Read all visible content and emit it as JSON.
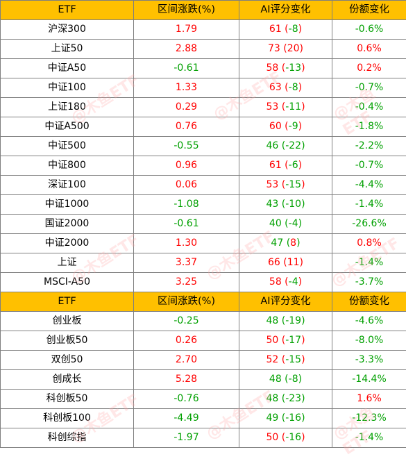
{
  "header": [
    "ETF",
    "区间涨跌(%)",
    "AI评分变化",
    "份额变化"
  ],
  "sections": [
    {
      "rows": [
        {
          "name": "沪深300",
          "change": "1.79",
          "change_color": "red",
          "score": "61",
          "score_color": "red",
          "delta": "-8",
          "delta_color": "green",
          "share": "-0.6%",
          "share_color": "green"
        },
        {
          "name": "上证50",
          "change": "2.88",
          "change_color": "red",
          "score": "73",
          "score_color": "red",
          "delta": "20",
          "delta_color": "red",
          "share": "0.6%",
          "share_color": "red"
        },
        {
          "name": "中证A50",
          "change": "-0.61",
          "change_color": "green",
          "score": "58",
          "score_color": "red",
          "delta": "-13",
          "delta_color": "green",
          "share": "0.2%",
          "share_color": "red"
        },
        {
          "name": "中证100",
          "change": "1.33",
          "change_color": "red",
          "score": "63",
          "score_color": "red",
          "delta": "-8",
          "delta_color": "green",
          "share": "-0.7%",
          "share_color": "green"
        },
        {
          "name": "上证180",
          "change": "0.29",
          "change_color": "red",
          "score": "53",
          "score_color": "red",
          "delta": "-11",
          "delta_color": "green",
          "share": "-0.4%",
          "share_color": "green"
        },
        {
          "name": "中证A500",
          "change": "0.76",
          "change_color": "red",
          "score": "60",
          "score_color": "red",
          "delta": "-9",
          "delta_color": "green",
          "share": "-1.8%",
          "share_color": "green"
        },
        {
          "name": "中证500",
          "change": "-0.55",
          "change_color": "green",
          "score": "46",
          "score_color": "green",
          "delta": "-22",
          "delta_color": "green",
          "share": "-2.2%",
          "share_color": "green"
        },
        {
          "name": "中证800",
          "change": "0.96",
          "change_color": "red",
          "score": "61",
          "score_color": "red",
          "delta": "-6",
          "delta_color": "green",
          "share": "-0.7%",
          "share_color": "green"
        },
        {
          "name": "深证100",
          "change": "0.06",
          "change_color": "red",
          "score": "53",
          "score_color": "red",
          "delta": "-15",
          "delta_color": "green",
          "share": "-4.4%",
          "share_color": "green"
        },
        {
          "name": "中证1000",
          "change": "-1.08",
          "change_color": "green",
          "score": "43",
          "score_color": "green",
          "delta": "-10",
          "delta_color": "green",
          "share": "-1.4%",
          "share_color": "green"
        },
        {
          "name": "国证2000",
          "change": "-0.61",
          "change_color": "green",
          "score": "40",
          "score_color": "green",
          "delta": "-4",
          "delta_color": "green",
          "share": "-26.6%",
          "share_color": "green"
        },
        {
          "name": "中证2000",
          "change": "1.30",
          "change_color": "red",
          "score": "47",
          "score_color": "green",
          "delta": "8",
          "delta_color": "red",
          "share": "0.8%",
          "share_color": "red"
        },
        {
          "name": "上证",
          "change": "3.37",
          "change_color": "red",
          "score": "66",
          "score_color": "red",
          "delta": "11",
          "delta_color": "red",
          "share": "-1.4%",
          "share_color": "green"
        },
        {
          "name": "MSCI-A50",
          "change": "3.25",
          "change_color": "red",
          "score": "58",
          "score_color": "red",
          "delta": "-4",
          "delta_color": "green",
          "share": "-3.7%",
          "share_color": "green"
        }
      ]
    },
    {
      "rows": [
        {
          "name": "创业板",
          "change": "-0.25",
          "change_color": "green",
          "score": "48",
          "score_color": "green",
          "delta": "-19",
          "delta_color": "green",
          "share": "-4.6%",
          "share_color": "green"
        },
        {
          "name": "创业板50",
          "change": "0.26",
          "change_color": "red",
          "score": "50",
          "score_color": "red",
          "delta": "-17",
          "delta_color": "green",
          "share": "-8.0%",
          "share_color": "green"
        },
        {
          "name": "双创50",
          "change": "2.70",
          "change_color": "red",
          "score": "52",
          "score_color": "red",
          "delta": "-15",
          "delta_color": "green",
          "share": "-3.3%",
          "share_color": "green"
        },
        {
          "name": "创成长",
          "change": "5.28",
          "change_color": "red",
          "score": "48",
          "score_color": "green",
          "delta": "-8",
          "delta_color": "green",
          "share": "-14.4%",
          "share_color": "green"
        },
        {
          "name": "科创板50",
          "change": "-0.76",
          "change_color": "green",
          "score": "48",
          "score_color": "green",
          "delta": "-23",
          "delta_color": "green",
          "share": "1.6%",
          "share_color": "red"
        },
        {
          "name": "科创板100",
          "change": "-4.49",
          "change_color": "green",
          "score": "49",
          "score_color": "green",
          "delta": "-16",
          "delta_color": "green",
          "share": "-12.3%",
          "share_color": "green"
        },
        {
          "name": "科创综指",
          "change": "-1.97",
          "change_color": "green",
          "score": "50",
          "score_color": "red",
          "delta": "-16",
          "delta_color": "green",
          "share": "-1.4%",
          "share_color": "green"
        }
      ]
    }
  ],
  "watermark": "@木鱼ETF",
  "colors": {
    "header_bg": "#ffc000",
    "up": "#ff0000",
    "down": "#00a000",
    "border": "#7f7f7f"
  }
}
